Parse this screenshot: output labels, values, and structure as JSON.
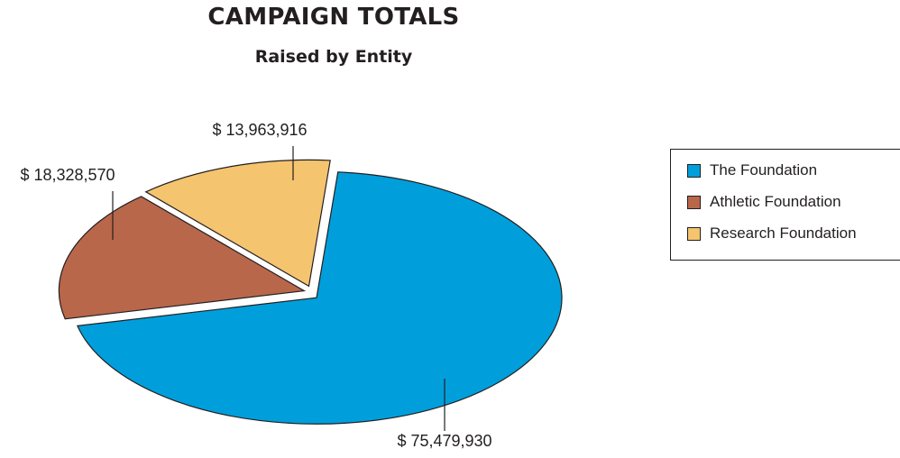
{
  "chart_data": {
    "type": "pie",
    "title": "CAMPAIGN TOTALS",
    "subtitle": "Raised by Entity",
    "slices": [
      {
        "name": "The Foundation",
        "value": 75479930,
        "label": "$ 75,479,930",
        "color": "#009fdc"
      },
      {
        "name": "Athletic Foundation",
        "value": 18328570,
        "label": "$ 18,328,570",
        "color": "#b9674a"
      },
      {
        "name": "Research Foundation",
        "value": 13963916,
        "label": "$ 13,963,916",
        "color": "#f5c46f"
      }
    ],
    "legend_position": "right",
    "exploded": true
  }
}
